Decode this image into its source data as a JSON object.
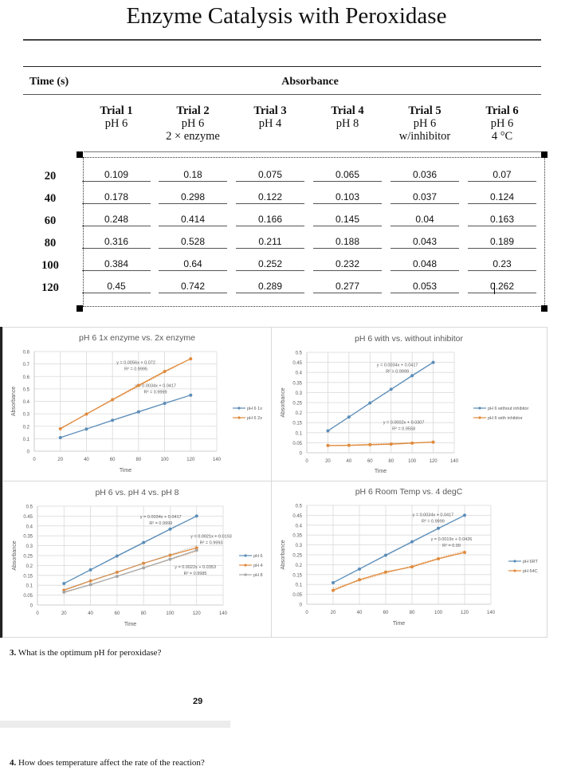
{
  "document": {
    "title": "Enzyme Catalysis with Peroxidase",
    "table": {
      "time_header": "Time (s)",
      "absorbance_header": "Absorbance",
      "trials": [
        {
          "name": "Trial 1",
          "line1": "pH 6",
          "line2": ""
        },
        {
          "name": "Trial 2",
          "line1": "pH 6",
          "line2": "2 × enzyme"
        },
        {
          "name": "Trial 3",
          "line1": "pH 4",
          "line2": ""
        },
        {
          "name": "Trial 4",
          "line1": "pH 8",
          "line2": ""
        },
        {
          "name": "Trial 5",
          "line1": "pH 6",
          "line2": "w/inhibitor"
        },
        {
          "name": "Trial 6",
          "line1": "pH 6",
          "line2": "4 °C"
        }
      ],
      "rows": [
        {
          "time": "20",
          "values": [
            "0.109",
            "0.18",
            "0.075",
            "0.065",
            "0.036",
            "0.07"
          ]
        },
        {
          "time": "40",
          "values": [
            "0.178",
            "0.298",
            "0.122",
            "0.103",
            "0.037",
            "0.124"
          ]
        },
        {
          "time": "60",
          "values": [
            "0.248",
            "0.414",
            "0.166",
            "0.145",
            "0.04",
            "0.163"
          ]
        },
        {
          "time": "80",
          "values": [
            "0.316",
            "0.528",
            "0.211",
            "0.188",
            "0.043",
            "0.189"
          ]
        },
        {
          "time": "100",
          "values": [
            "0.384",
            "0.64",
            "0.252",
            "0.232",
            "0.048",
            "0.23"
          ]
        },
        {
          "time": "120",
          "values": [
            "0.45",
            "0.742",
            "0.289",
            "0.277",
            "0.053",
            "0.262"
          ]
        }
      ]
    },
    "questions": [
      {
        "number": "3.",
        "text": "What is the optimum pH for peroxidase?"
      },
      {
        "number": "4.",
        "text": "How does temperature affect the rate of the reaction?"
      }
    ],
    "page_number": "29"
  },
  "colors": {
    "blue": "#5b8db8",
    "orange": "#e08a3c",
    "gray": "#a5a5a5",
    "grid": "#d9d9d9",
    "axis_text": "#595959"
  },
  "chart_data": [
    {
      "type": "line",
      "title": "pH 6 1x enzyme vs. 2x enzyme",
      "xlabel": "Time",
      "ylabel": "Absorbance",
      "xlim": [
        0,
        140
      ],
      "ylim": [
        0,
        0.8
      ],
      "xticks": [
        0,
        20,
        40,
        60,
        80,
        100,
        120,
        140
      ],
      "yticks": [
        0,
        0.1,
        0.2,
        0.3,
        0.4,
        0.5,
        0.6,
        0.7,
        0.8
      ],
      "ytick_labels": [
        "0",
        "0.1",
        "0.2",
        "0.3",
        "0.4",
        "0.5",
        "0.6",
        "0.7",
        "0.8"
      ],
      "grid": true,
      "legend": "right",
      "x": [
        20,
        40,
        60,
        80,
        100,
        120
      ],
      "series": [
        {
          "name": "pH 6 1x",
          "color": "blue",
          "values": [
            0.109,
            0.178,
            0.248,
            0.316,
            0.384,
            0.45
          ],
          "trendline": {
            "equation": "y = 0.0034x + 0.0417",
            "r2": "R² = 0.9999",
            "label_at": [
              93,
              0.515
            ]
          }
        },
        {
          "name": "pH 6 2x",
          "color": "orange",
          "values": [
            0.18,
            0.298,
            0.414,
            0.528,
            0.64,
            0.742
          ],
          "trendline": {
            "equation": "y = 0.0056x + 0.072",
            "r2": "R² = 0.9995",
            "label_at": [
              78,
              0.7
            ]
          }
        }
      ]
    },
    {
      "type": "line",
      "title": "pH 6 with vs. without inhibitor",
      "xlabel": "Time",
      "ylabel": "Absorbance",
      "xlim": [
        0,
        140
      ],
      "ylim": [
        0,
        0.5
      ],
      "xticks": [
        0,
        20,
        40,
        60,
        80,
        100,
        120,
        140
      ],
      "yticks": [
        0,
        0.05,
        0.1,
        0.15,
        0.2,
        0.25,
        0.3,
        0.35,
        0.4,
        0.45,
        0.5
      ],
      "ytick_labels": [
        "0",
        "0.05",
        "0.1",
        "0.15",
        "0.2",
        "0.25",
        "0.3",
        "0.35",
        "0.4",
        "0.45",
        "0.5"
      ],
      "grid": true,
      "legend": "right",
      "x": [
        20,
        40,
        60,
        80,
        100,
        120
      ],
      "series": [
        {
          "name": "pH 6 without inhibitor",
          "color": "blue",
          "values": [
            0.109,
            0.178,
            0.248,
            0.316,
            0.384,
            0.45
          ],
          "trendline": {
            "equation": "y = 0.0034x + 0.0417",
            "r2": "R² = 0.9999",
            "label_at": [
              86,
              0.43
            ]
          }
        },
        {
          "name": "pH 6 with inhibitor",
          "color": "orange",
          "values": [
            0.036,
            0.037,
            0.04,
            0.043,
            0.048,
            0.053
          ],
          "trendline": {
            "equation": "y = 0.0002x + 0.0307",
            "r2": "R² = 0.9558",
            "label_at": [
              92,
              0.145
            ]
          }
        }
      ]
    },
    {
      "type": "line",
      "title": "pH 6 vs. pH 4 vs. pH 8",
      "xlabel": "Time",
      "ylabel": "Absorbance",
      "xlim": [
        0,
        140
      ],
      "ylim": [
        0,
        0.5
      ],
      "xticks": [
        0,
        20,
        40,
        60,
        80,
        100,
        120,
        140
      ],
      "yticks": [
        0,
        0.05,
        0.1,
        0.15,
        0.2,
        0.25,
        0.3,
        0.35,
        0.4,
        0.45,
        0.5
      ],
      "ytick_labels": [
        "0",
        "0.05",
        "0.1",
        "0.15",
        "0.2",
        "0.25",
        "0.3",
        "0.35",
        "0.4",
        "0.45",
        "0.5"
      ],
      "grid": true,
      "legend": "right",
      "x": [
        20,
        40,
        60,
        80,
        100,
        120
      ],
      "series": [
        {
          "name": "pH 6",
          "color": "blue",
          "values": [
            0.109,
            0.178,
            0.248,
            0.316,
            0.384,
            0.45
          ],
          "trendline": {
            "equation": "y = 0.0034x + 0.0417",
            "r2": "R² = 0.9999",
            "label_at": [
              93,
              0.44
            ]
          }
        },
        {
          "name": "pH 4",
          "color": "orange",
          "values": [
            0.075,
            0.122,
            0.166,
            0.211,
            0.252,
            0.289
          ],
          "trendline": {
            "equation": "y = 0.0021x + 0.0193",
            "r2": "R² = 0.9993",
            "label_at": [
              131,
              0.34
            ]
          }
        },
        {
          "name": "pH 8",
          "color": "gray",
          "values": [
            0.065,
            0.103,
            0.145,
            0.188,
            0.232,
            0.277
          ],
          "trendline": {
            "equation": "y = 0.0022x + 0.0353",
            "r2": "R² = 0.9985",
            "label_at": [
              119,
              0.185
            ]
          }
        }
      ]
    },
    {
      "type": "line",
      "title": "pH 6 Room Temp vs. 4 degC",
      "xlabel": "Time",
      "ylabel": "Absorbance",
      "xlim": [
        0,
        140
      ],
      "ylim": [
        0,
        0.5
      ],
      "xticks": [
        0,
        20,
        40,
        60,
        80,
        100,
        120,
        140
      ],
      "yticks": [
        0,
        0.05,
        0.1,
        0.15,
        0.2,
        0.25,
        0.3,
        0.35,
        0.4,
        0.45,
        0.5
      ],
      "ytick_labels": [
        "0",
        "0.05",
        "0.1",
        "0.15",
        "0.2",
        "0.25",
        "0.3",
        "0.35",
        "0.4",
        "0.45",
        "0.5"
      ],
      "grid": true,
      "legend": "right",
      "x": [
        20,
        40,
        60,
        80,
        100,
        120
      ],
      "series": [
        {
          "name": "pH 6RT",
          "color": "blue",
          "values": [
            0.109,
            0.178,
            0.248,
            0.316,
            0.384,
            0.45
          ],
          "trendline": {
            "equation": "y = 0.0034x + 0.0417",
            "r2": "R² = 0.9999",
            "label_at": [
              96,
              0.445
            ]
          }
        },
        {
          "name": "pH 64C",
          "color": "orange",
          "values": [
            0.07,
            0.124,
            0.163,
            0.189,
            0.23,
            0.262
          ],
          "trendline": {
            "equation": "y = 0.0019x + 0.0426",
            "r2": "R² = 0.99",
            "label_at": [
              110,
              0.322
            ]
          }
        }
      ]
    }
  ]
}
